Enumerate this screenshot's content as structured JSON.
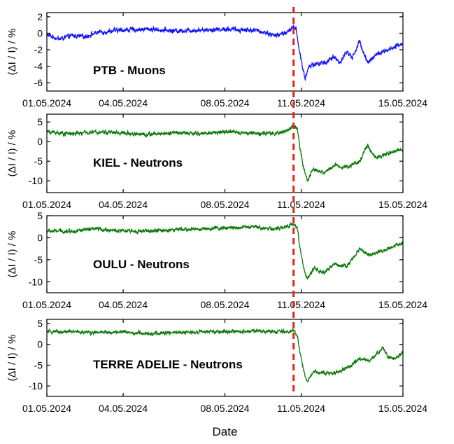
{
  "chart_data": {
    "type": "line",
    "xlabel": "Date",
    "event_marker": {
      "date": "10.05.2024 ~17 UT",
      "x_day": 9.7,
      "color": "#e8231c",
      "style": "dashed"
    },
    "x_axis": {
      "range_days": [
        0,
        14
      ],
      "ticks": [
        {
          "day": 0,
          "label": "01.05.2024"
        },
        {
          "day": 3,
          "label": "04.05.2024"
        },
        {
          "day": 7,
          "label": "08.05.2024"
        },
        {
          "day": 10,
          "label": "11.05.2024"
        },
        {
          "day": 14,
          "label": "15.05.2024"
        }
      ]
    },
    "panels": [
      {
        "name": "PTB - Muons",
        "color": "#1414ff",
        "ylabel": "(ΔI / I) / %",
        "ylim": [
          -7,
          2.5
        ],
        "yticks": [
          2,
          0,
          -2,
          -4,
          -6
        ],
        "ytick_labels": [
          "2",
          "0",
          "-2",
          "-4",
          "-6"
        ],
        "noise": 0.4,
        "keyframes": [
          [
            0,
            -0.2
          ],
          [
            0.5,
            -0.7
          ],
          [
            1,
            -0.3
          ],
          [
            1.5,
            -0.4
          ],
          [
            2,
            0.1
          ],
          [
            3,
            0.4
          ],
          [
            4,
            0.5
          ],
          [
            5,
            0.3
          ],
          [
            6,
            0.4
          ],
          [
            7,
            0.5
          ],
          [
            8,
            0.4
          ],
          [
            8.5,
            0.2
          ],
          [
            9,
            -0.3
          ],
          [
            9.5,
            0.2
          ],
          [
            9.7,
            0.8
          ],
          [
            9.8,
            0.5
          ],
          [
            9.9,
            -1.5
          ],
          [
            10.05,
            -4.2
          ],
          [
            10.15,
            -5.5
          ],
          [
            10.3,
            -4.0
          ],
          [
            10.6,
            -3.7
          ],
          [
            11.0,
            -3.5
          ],
          [
            11.3,
            -2.8
          ],
          [
            11.5,
            -3.6
          ],
          [
            11.8,
            -2.2
          ],
          [
            12.0,
            -3.0
          ],
          [
            12.3,
            -1.0
          ],
          [
            12.6,
            -3.5
          ],
          [
            13.0,
            -2.5
          ],
          [
            13.5,
            -2.0
          ],
          [
            14.0,
            -1.2
          ]
        ]
      },
      {
        "name": "KIEL - Neutrons",
        "color": "#0b7a0b",
        "ylabel": "(ΔI / I) / %",
        "ylim": [
          -13,
          7
        ],
        "yticks": [
          5,
          0,
          -5,
          -10
        ],
        "ytick_labels": [
          "5",
          "0",
          "-5",
          "-10"
        ],
        "noise": 0.7,
        "keyframes": [
          [
            0,
            2.5
          ],
          [
            1,
            2.0
          ],
          [
            2,
            2.5
          ],
          [
            3,
            2.2
          ],
          [
            4,
            1.8
          ],
          [
            5,
            2.3
          ],
          [
            6,
            2.0
          ],
          [
            7,
            2.5
          ],
          [
            8,
            2.2
          ],
          [
            9,
            2.0
          ],
          [
            9.5,
            3.0
          ],
          [
            9.7,
            4.0
          ],
          [
            9.85,
            3.0
          ],
          [
            9.95,
            -1.5
          ],
          [
            10.1,
            -7.0
          ],
          [
            10.25,
            -10.0
          ],
          [
            10.45,
            -7.0
          ],
          [
            10.9,
            -8.0
          ],
          [
            11.3,
            -6.0
          ],
          [
            11.8,
            -6.5
          ],
          [
            12.3,
            -5.0
          ],
          [
            12.6,
            -1.0
          ],
          [
            12.9,
            -4.0
          ],
          [
            13.5,
            -3.0
          ],
          [
            14.0,
            -1.8
          ]
        ]
      },
      {
        "name": "OULU - Neutrons",
        "color": "#0b7a0b",
        "ylabel": "(ΔI / I) / %",
        "ylim": [
          -12.5,
          5
        ],
        "yticks": [
          5,
          0,
          -5,
          -10
        ],
        "ytick_labels": [
          "5",
          "0",
          "-5",
          "-10"
        ],
        "noise": 0.6,
        "keyframes": [
          [
            0,
            1.5
          ],
          [
            1,
            1.5
          ],
          [
            2,
            2.0
          ],
          [
            3,
            1.5
          ],
          [
            4,
            1.5
          ],
          [
            5,
            1.8
          ],
          [
            6,
            2.0
          ],
          [
            7,
            2.2
          ],
          [
            8,
            2.5
          ],
          [
            9,
            2.0
          ],
          [
            9.5,
            2.5
          ],
          [
            9.7,
            3.3
          ],
          [
            9.85,
            2.0
          ],
          [
            9.95,
            -2.0
          ],
          [
            10.1,
            -7.0
          ],
          [
            10.25,
            -9.5
          ],
          [
            10.5,
            -7.0
          ],
          [
            10.9,
            -8.0
          ],
          [
            11.3,
            -6.0
          ],
          [
            11.8,
            -6.5
          ],
          [
            12.3,
            -2.5
          ],
          [
            12.7,
            -4.0
          ],
          [
            13.2,
            -3.0
          ],
          [
            13.6,
            -2.0
          ],
          [
            14.0,
            -1.2
          ]
        ]
      },
      {
        "name": "TERRE ADELIE - Neutrons",
        "color": "#0b7a0b",
        "ylabel": "(ΔI / I) / %",
        "ylim": [
          -12.5,
          6
        ],
        "yticks": [
          5,
          0,
          -5,
          -10
        ],
        "ytick_labels": [
          "5",
          "0",
          "-5",
          "-10"
        ],
        "noise": 0.6,
        "keyframes": [
          [
            0,
            3.0
          ],
          [
            1,
            3.0
          ],
          [
            2,
            2.8
          ],
          [
            3,
            3.0
          ],
          [
            4,
            2.5
          ],
          [
            5,
            2.8
          ],
          [
            6,
            3.0
          ],
          [
            7,
            3.0
          ],
          [
            8,
            3.2
          ],
          [
            9,
            3.0
          ],
          [
            9.5,
            3.0
          ],
          [
            9.7,
            3.5
          ],
          [
            9.85,
            2.0
          ],
          [
            9.95,
            -2.0
          ],
          [
            10.1,
            -6.5
          ],
          [
            10.25,
            -9.0
          ],
          [
            10.5,
            -6.5
          ],
          [
            11.0,
            -7.0
          ],
          [
            11.5,
            -6.5
          ],
          [
            12.0,
            -5.0
          ],
          [
            12.3,
            -3.5
          ],
          [
            12.7,
            -4.0
          ],
          [
            13.2,
            -0.8
          ],
          [
            13.4,
            -3.0
          ],
          [
            13.7,
            -3.5
          ],
          [
            14.0,
            -1.8
          ]
        ]
      }
    ]
  }
}
